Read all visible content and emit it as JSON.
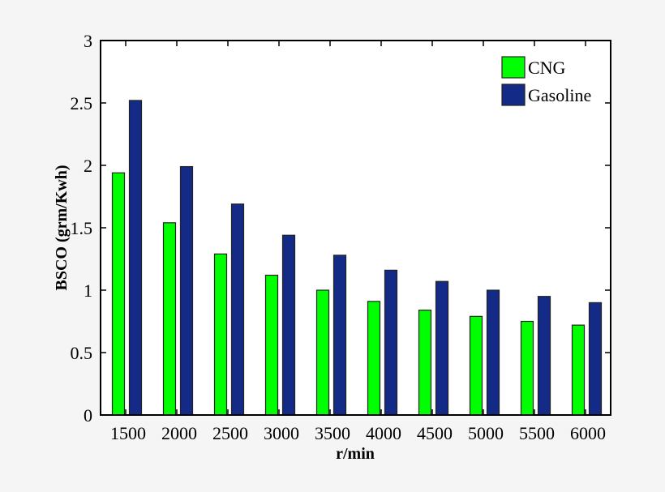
{
  "chart_data": {
    "type": "bar",
    "title": "",
    "xlabel": "r/min",
    "ylabel": "BSCO (grm/Kwh)",
    "categories": [
      "1500",
      "2000",
      "2500",
      "3000",
      "3500",
      "4000",
      "4500",
      "5000",
      "5500",
      "6000"
    ],
    "series": [
      {
        "name": "CNG",
        "color": "#00ff00",
        "values": [
          1.94,
          1.54,
          1.29,
          1.12,
          1.0,
          0.91,
          0.84,
          0.79,
          0.75,
          0.72
        ]
      },
      {
        "name": "Gasoline",
        "color": "#142a87",
        "values": [
          2.52,
          1.99,
          1.69,
          1.44,
          1.28,
          1.16,
          1.07,
          1.0,
          0.95,
          0.9
        ]
      }
    ],
    "ylim": [
      0,
      3
    ],
    "yticks": [
      0,
      0.5,
      1,
      1.5,
      2,
      2.5,
      3
    ],
    "ytick_labels": [
      "0",
      "0.5",
      "1",
      "1.5",
      "2",
      "2.5",
      "3"
    ],
    "grid": false,
    "legend_position": "upper right"
  }
}
